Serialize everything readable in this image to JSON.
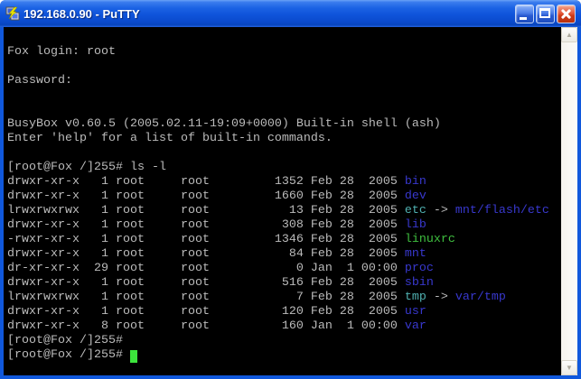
{
  "window": {
    "title": "192.168.0.90 - PuTTY"
  },
  "colors": {
    "terminal_bg": "#000000",
    "terminal_fg": "#BBBBBB",
    "dir_blue": "#3838CE",
    "symlink_cyan": "#4FAFAF",
    "exec_green": "#3FBF3F",
    "cursor_green": "#3CE43C",
    "titlebar_blue": "#1058DC",
    "close_red": "#CE3A17"
  },
  "scrollbar": {
    "up_icon": "▲",
    "down_icon": "▼"
  },
  "terminal": {
    "lines": [
      [],
      [
        {
          "text": "Fox login: root",
          "color": "fg"
        }
      ],
      [],
      [
        {
          "text": "Password:",
          "color": "fg"
        }
      ],
      [],
      [],
      [
        {
          "text": "BusyBox v0.60.5 (2005.02.11-19:09+0000) Built-in shell (ash)",
          "color": "fg"
        }
      ],
      [
        {
          "text": "Enter 'help' for a list of built-in commands.",
          "color": "fg"
        }
      ],
      [],
      [
        {
          "text": "[root@Fox /]255# ls -l",
          "color": "fg"
        }
      ],
      [
        {
          "text": "drwxr-xr-x   1 root     root         1352 Feb 28  2005 ",
          "color": "fg"
        },
        {
          "text": "bin",
          "color": "dir"
        }
      ],
      [
        {
          "text": "drwxr-xr-x   1 root     root         1660 Feb 28  2005 ",
          "color": "fg"
        },
        {
          "text": "dev",
          "color": "dir"
        }
      ],
      [
        {
          "text": "lrwxrwxrwx   1 root     root           13 Feb 28  2005 ",
          "color": "fg"
        },
        {
          "text": "etc",
          "color": "link"
        },
        {
          "text": " -> ",
          "color": "fg"
        },
        {
          "text": "mnt/flash/etc",
          "color": "dir"
        }
      ],
      [
        {
          "text": "drwxr-xr-x   1 root     root          308 Feb 28  2005 ",
          "color": "fg"
        },
        {
          "text": "lib",
          "color": "dir"
        }
      ],
      [
        {
          "text": "-rwxr-xr-x   1 root     root         1346 Feb 28  2005 ",
          "color": "fg"
        },
        {
          "text": "linuxrc",
          "color": "exec"
        }
      ],
      [
        {
          "text": "drwxr-xr-x   1 root     root           84 Feb 28  2005 ",
          "color": "fg"
        },
        {
          "text": "mnt",
          "color": "dir"
        }
      ],
      [
        {
          "text": "dr-xr-xr-x  29 root     root            0 Jan  1 00:00 ",
          "color": "fg"
        },
        {
          "text": "proc",
          "color": "dir"
        }
      ],
      [
        {
          "text": "drwxr-xr-x   1 root     root          516 Feb 28  2005 ",
          "color": "fg"
        },
        {
          "text": "sbin",
          "color": "dir"
        }
      ],
      [
        {
          "text": "lrwxrwxrwx   1 root     root            7 Feb 28  2005 ",
          "color": "fg"
        },
        {
          "text": "tmp",
          "color": "link"
        },
        {
          "text": " -> ",
          "color": "fg"
        },
        {
          "text": "var/tmp",
          "color": "dir"
        }
      ],
      [
        {
          "text": "drwxr-xr-x   1 root     root          120 Feb 28  2005 ",
          "color": "fg"
        },
        {
          "text": "usr",
          "color": "dir"
        }
      ],
      [
        {
          "text": "drwxr-xr-x   8 root     root          160 Jan  1 00:00 ",
          "color": "fg"
        },
        {
          "text": "var",
          "color": "dir"
        }
      ],
      [
        {
          "text": "[root@Fox /]255#",
          "color": "fg"
        }
      ],
      [
        {
          "text": "[root@Fox /]255# ",
          "color": "fg"
        },
        {
          "cursor": true
        }
      ]
    ]
  }
}
